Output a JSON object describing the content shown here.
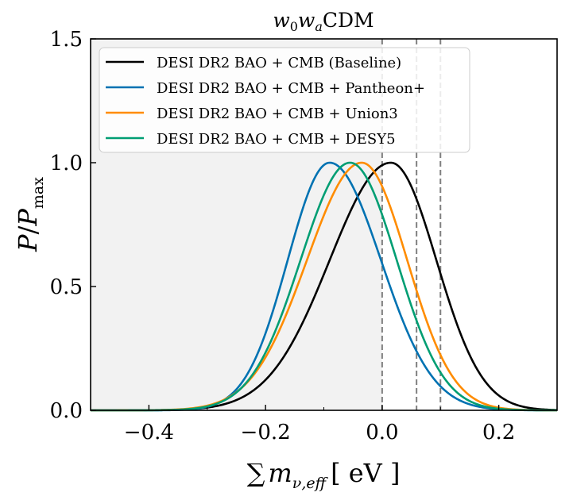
{
  "chart_data": {
    "type": "line",
    "title_base": "w",
    "title_sub1": "0",
    "title_mid": "w",
    "title_sub2": "a",
    "title_tail": "CDM",
    "xlabel_sum": "∑",
    "xlabel_m": "m",
    "xlabel_sub": "ν,eff",
    "xlabel_units": "[ eV ]",
    "ylabel_p": "P",
    "ylabel_slash": "/",
    "ylabel_p2": "P",
    "ylabel_sub": "max",
    "xlim": [
      -0.5,
      0.3
    ],
    "ylim": [
      0.0,
      1.5
    ],
    "xticks": [
      -0.4,
      -0.2,
      0.0,
      0.2
    ],
    "xtick_labels": [
      "−0.4",
      "−0.2",
      "0.0",
      "0.2"
    ],
    "yticks": [
      0.0,
      0.5,
      1.0,
      1.5
    ],
    "ytick_labels": [
      "0.0",
      "0.5",
      "1.0",
      "1.5"
    ],
    "shaded_region": [
      -0.5,
      0.0
    ],
    "vlines": [
      0.0,
      0.059,
      0.1
    ],
    "legend_position": "top-left",
    "series": [
      {
        "name": "DESI DR2 BAO + CMB (Baseline)",
        "color": "#000000",
        "peak": 0.015,
        "sigma_left": 0.105,
        "sigma_right": 0.078
      },
      {
        "name": "DESI DR2 BAO + CMB + Pantheon+",
        "color": "#0072b2",
        "peak": -0.09,
        "sigma_left": 0.072,
        "sigma_right": 0.088
      },
      {
        "name": "DESI DR2 BAO + CMB + Union3",
        "color": "#ff8c00",
        "peak": -0.035,
        "sigma_left": 0.094,
        "sigma_right": 0.078
      },
      {
        "name": "DESI DR2 BAO + CMB + DESY5",
        "color": "#009e73",
        "peak": -0.055,
        "sigma_left": 0.085,
        "sigma_right": 0.08
      }
    ]
  }
}
